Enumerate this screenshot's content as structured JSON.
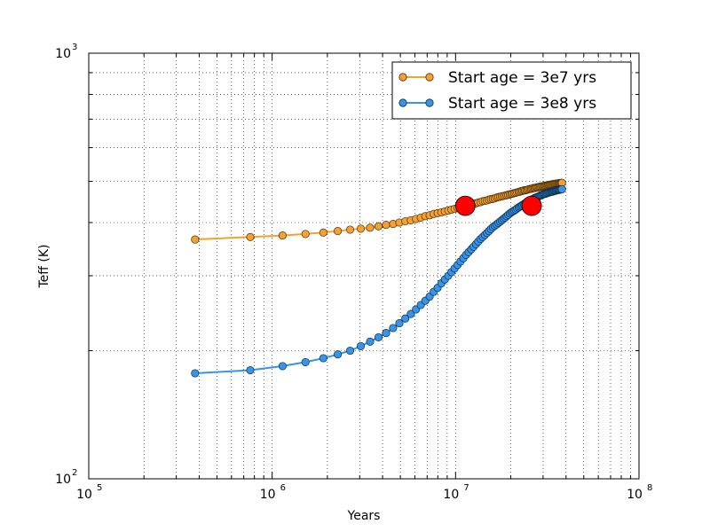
{
  "chart_data": {
    "type": "line",
    "title": "",
    "xlabel": "Years",
    "ylabel": "Teff (K)",
    "xscale": "log",
    "yscale": "log",
    "xlim": [
      100000,
      100000000
    ],
    "ylim": [
      100,
      1000
    ],
    "grid": true,
    "legend_position": "top-right",
    "x_ticks": [
      {
        "value": 100000,
        "base": "10",
        "exp": "5"
      },
      {
        "value": 1000000,
        "base": "10",
        "exp": "6"
      },
      {
        "value": 10000000,
        "base": "10",
        "exp": "7"
      },
      {
        "value": 100000000,
        "base": "10",
        "exp": "8"
      }
    ],
    "y_ticks": [
      {
        "value": 100,
        "base": "10",
        "exp": "2"
      },
      {
        "value": 1000,
        "base": "10",
        "exp": "3"
      }
    ],
    "series": [
      {
        "name": "Start age = 3e7 yrs",
        "color": "#f5a033",
        "edge_color": "#4a2e08",
        "marker": "circle",
        "x": [
          380000,
          760000,
          1140000,
          1520000,
          1900000,
          2280000,
          2660000,
          3040000,
          3420000,
          3800000,
          4180000,
          4560000,
          4940000,
          5320000,
          5700000,
          6080000,
          6460000,
          6840000,
          7220000,
          7600000,
          7980000,
          8360000,
          8740000,
          9120000,
          9500000,
          9880000,
          10260000,
          10640000,
          11020000,
          11400000,
          11780000,
          12160000,
          12540000,
          12920000,
          13300000,
          13680000,
          14060000,
          14440000,
          14820000,
          15200000,
          15580000,
          15960000,
          16340000,
          16720000,
          17100000,
          17480000,
          17860000,
          18240000,
          18620000,
          19000000,
          19380000,
          19760000,
          20140000,
          20520000,
          20900000,
          21280000,
          21660000,
          22040000,
          22420000,
          22800000,
          23180000,
          23560000,
          23940000,
          24320000,
          24700000,
          25080000,
          25460000,
          25840000,
          26220000,
          26600000,
          26980000,
          27360000,
          27740000,
          28120000,
          28500000,
          28880000,
          29260000,
          29640000,
          30020000,
          30400000,
          30780000,
          31160000,
          31540000,
          31920000,
          32300000,
          32680000,
          33060000,
          33440000,
          33820000,
          34200000,
          34580000,
          34960000,
          35340000,
          35720000,
          36100000,
          36480000,
          36860000,
          37240000,
          37620000,
          38000000
        ],
        "y": [
          365,
          370,
          373,
          376,
          379,
          382,
          385,
          387,
          389,
          392,
          395,
          397,
          400,
          403,
          405,
          408,
          411,
          414,
          416,
          419,
          421,
          423,
          425,
          427,
          429,
          431,
          433,
          435,
          436,
          438,
          440,
          441,
          443,
          444,
          446,
          447,
          449,
          450,
          451,
          453,
          454,
          455,
          456,
          458,
          459,
          460,
          461,
          462,
          463,
          464,
          465,
          466,
          467,
          468,
          469,
          470,
          471,
          472,
          473,
          474,
          475,
          476,
          476,
          477,
          478,
          479,
          480,
          480,
          481,
          482,
          482,
          483,
          484,
          484,
          485,
          486,
          486,
          487,
          487,
          488,
          488,
          489,
          489,
          490,
          490,
          491,
          491,
          492,
          492,
          493,
          493,
          493,
          494,
          494,
          494,
          495,
          495,
          495,
          496,
          496
        ]
      },
      {
        "name": "Start age = 3e8 yrs",
        "color": "#3894e8",
        "edge_color": "#0b2c4a",
        "marker": "circle",
        "x": [
          380000,
          760000,
          1140000,
          1520000,
          1900000,
          2280000,
          2660000,
          3040000,
          3420000,
          3800000,
          4180000,
          4560000,
          4940000,
          5320000,
          5700000,
          6080000,
          6460000,
          6840000,
          7220000,
          7600000,
          7980000,
          8360000,
          8740000,
          9120000,
          9500000,
          9880000,
          10260000,
          10640000,
          11020000,
          11400000,
          11780000,
          12160000,
          12540000,
          12920000,
          13300000,
          13680000,
          14060000,
          14440000,
          14820000,
          15200000,
          15580000,
          15960000,
          16340000,
          16720000,
          17100000,
          17480000,
          17860000,
          18240000,
          18620000,
          19000000,
          19380000,
          19760000,
          20140000,
          20520000,
          20900000,
          21280000,
          21660000,
          22040000,
          22420000,
          22800000,
          23180000,
          23560000,
          23940000,
          24320000,
          24700000,
          25080000,
          25460000,
          25840000,
          26220000,
          26600000,
          26980000,
          27360000,
          27740000,
          28120000,
          28500000,
          28880000,
          29260000,
          29640000,
          30020000,
          30400000,
          30780000,
          31160000,
          31540000,
          31920000,
          32300000,
          32680000,
          33060000,
          33440000,
          33820000,
          34200000,
          34580000,
          34960000,
          35340000,
          35720000,
          36100000,
          36480000,
          36860000,
          37240000,
          37620000,
          38000000
        ],
        "y": [
          177,
          180,
          184,
          188,
          192,
          196,
          200,
          205,
          210,
          215,
          220,
          226,
          232,
          238,
          244,
          250,
          256,
          262,
          268,
          275,
          281,
          288,
          294,
          300,
          306,
          312,
          318,
          324,
          330,
          336,
          341,
          346,
          351,
          356,
          361,
          366,
          370,
          374,
          378,
          382,
          386,
          390,
          393,
          396,
          399,
          402,
          405,
          408,
          411,
          414,
          417,
          420,
          423,
          425,
          427,
          429,
          432,
          434,
          436,
          438,
          440,
          442,
          444,
          446,
          448,
          449,
          451,
          452,
          454,
          455,
          457,
          458,
          459,
          460,
          461,
          463,
          464,
          465,
          466,
          467,
          467,
          468,
          469,
          470,
          471,
          471,
          472,
          473,
          473,
          474,
          475,
          475,
          476,
          476,
          477,
          477,
          478,
          478,
          479,
          479
        ]
      }
    ],
    "highlight_points": [
      {
        "series": "Start age = 3e7 yrs",
        "x": 11300000,
        "y": 438,
        "color": "#ff0000"
      },
      {
        "series": "Start age = 3e8 yrs",
        "x": 26000000,
        "y": 438,
        "color": "#ff0000"
      }
    ]
  }
}
